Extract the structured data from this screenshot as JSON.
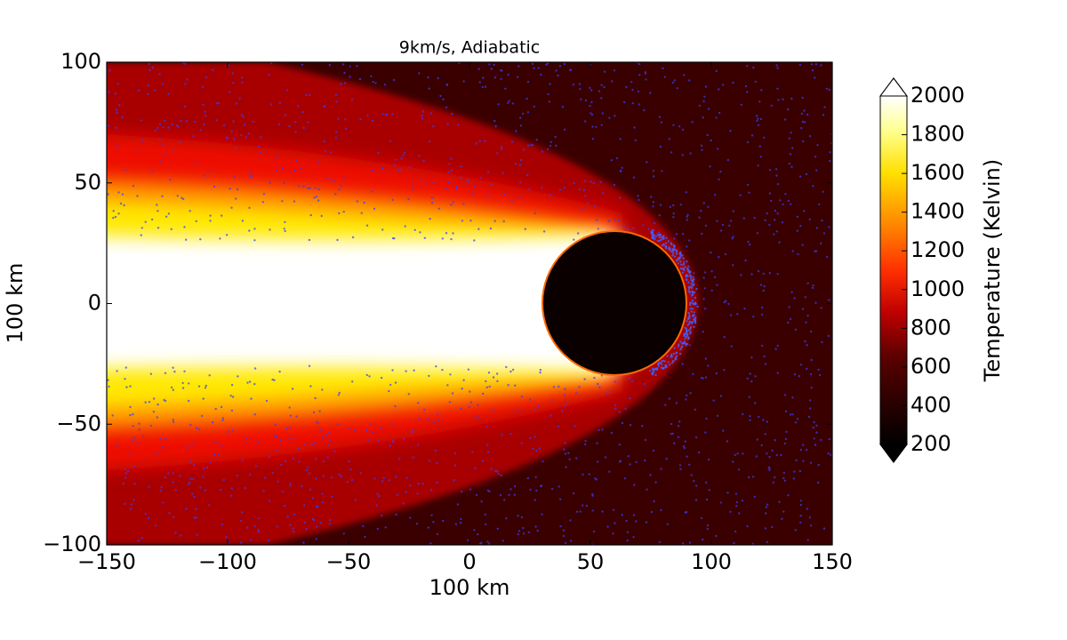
{
  "chart_data": {
    "type": "heatmap",
    "title": "9km/s, Adiabatic",
    "x_label": "100 km",
    "y_label": "100 km",
    "xlim": [
      -150,
      150
    ],
    "xticks": [
      {
        "value": -150,
        "label": "−150"
      },
      {
        "value": -100,
        "label": "−100"
      },
      {
        "value": -50,
        "label": "−50"
      },
      0,
      50,
      100,
      150
    ],
    "ylim": [
      -100,
      100
    ],
    "yticks": [
      {
        "value": -100,
        "label": "−100"
      },
      {
        "value": -50,
        "label": "−50"
      },
      0,
      50,
      100
    ],
    "colorbar": {
      "label": "Temperature (Kelvin)",
      "lim": [
        200,
        2000
      ],
      "ticks": [
        200,
        400,
        600,
        800,
        1000,
        1200,
        1400,
        1600,
        1800,
        2000
      ]
    }
  }
}
